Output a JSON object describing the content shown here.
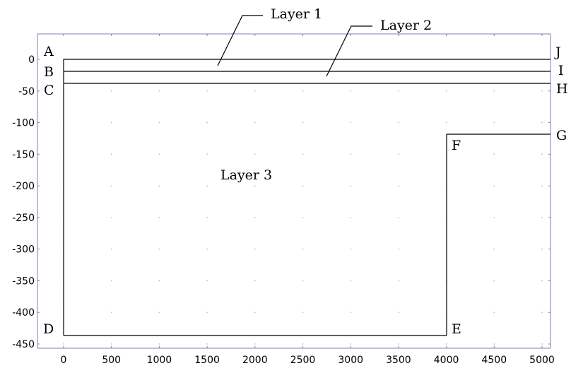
{
  "diagram": {
    "x_ticks": [
      "0",
      "500",
      "1000",
      "1500",
      "2000",
      "2500",
      "3000",
      "3500",
      "4000",
      "4500",
      "5000"
    ],
    "y_ticks": [
      "0",
      "-50",
      "-100",
      "-150",
      "-200",
      "-250",
      "-300",
      "-350",
      "-400",
      "-450"
    ],
    "layer_labels": {
      "layer1": "Layer 1",
      "layer2": "Layer 2",
      "layer3": "Layer 3"
    },
    "corner_labels": {
      "A": "A",
      "B": "B",
      "C": "C",
      "D": "D",
      "E": "E",
      "F": "F",
      "G": "G",
      "H": "H",
      "I": "I",
      "J": "J"
    },
    "colors": {
      "frame": "#7f7fb3",
      "line": "#000000",
      "grid_dot": "#bdbdbd"
    }
  }
}
